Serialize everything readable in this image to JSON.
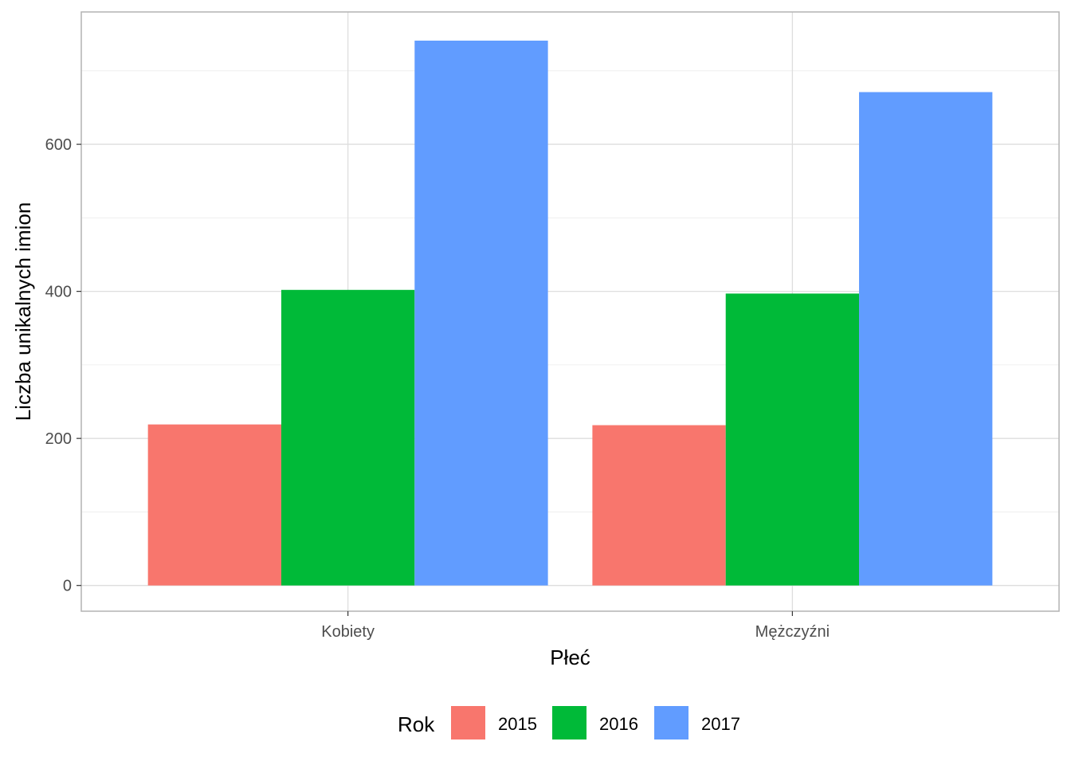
{
  "chart_data": {
    "type": "bar",
    "title": "",
    "xlabel": "Płeć",
    "ylabel": "Liczba unikalnych imion",
    "categories": [
      "Kobiety",
      "Mężczyźni"
    ],
    "series": [
      {
        "name": "2015",
        "values": [
          219,
          218
        ],
        "color": "#F8766D"
      },
      {
        "name": "2016",
        "values": [
          402,
          397
        ],
        "color": "#00BA38"
      },
      {
        "name": "2017",
        "values": [
          741,
          671
        ],
        "color": "#619CFF"
      }
    ],
    "ylim": [
      -35,
      780
    ],
    "yticks": [
      0,
      200,
      400,
      600
    ],
    "ytick_labels": [
      "0",
      "200",
      "400",
      "600"
    ],
    "grid": true,
    "legend": {
      "title": "Rok",
      "position": "bottom"
    }
  }
}
